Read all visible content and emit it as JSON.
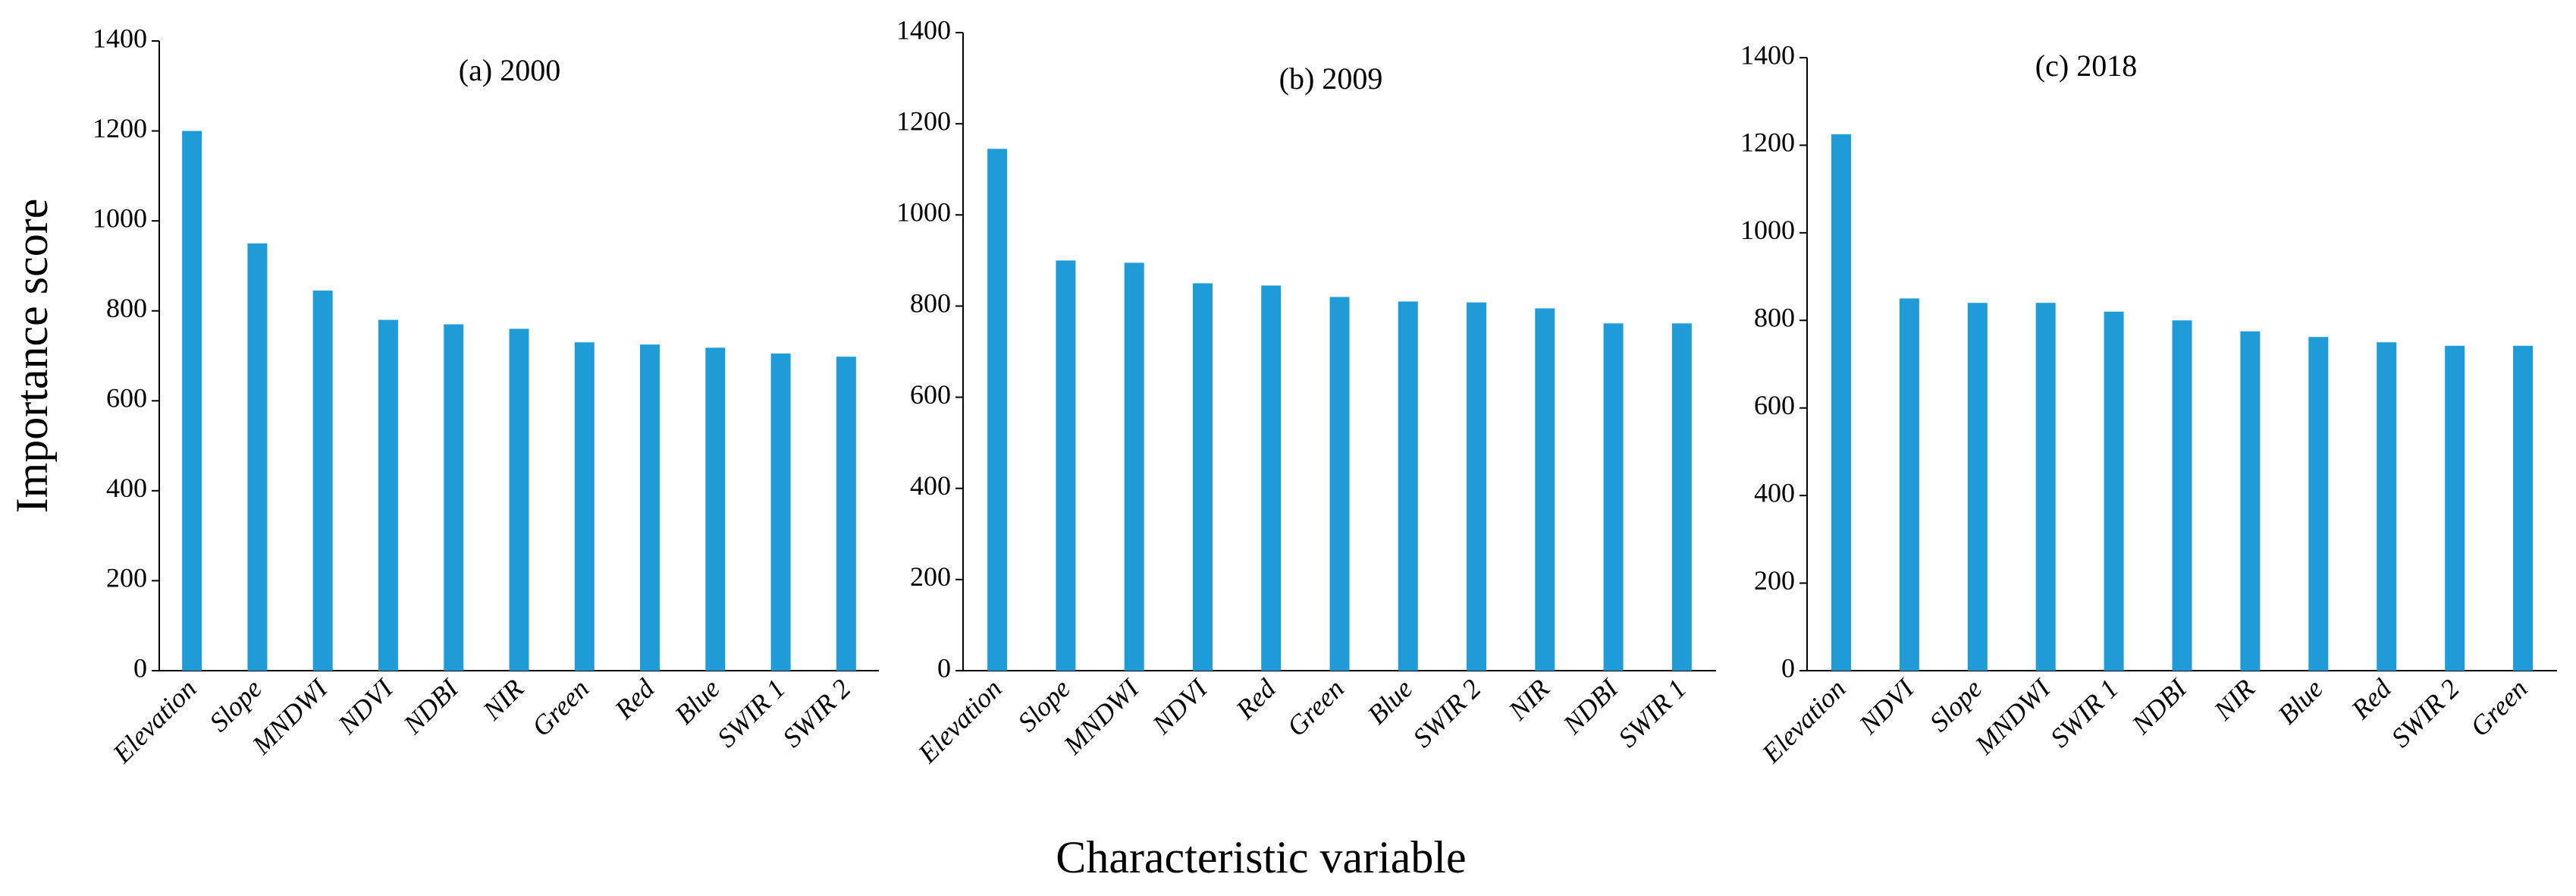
{
  "chart_data": [
    {
      "type": "bar",
      "title": "(a) 2000",
      "y_label": "Importance score",
      "color": "#1f9bd7",
      "categories": [
        "Elevation",
        "Slope",
        "MNDWI",
        "NDVI",
        "NDBI",
        "NIR",
        "Green",
        "Red",
        "Blue",
        "SWIR 1",
        "SWIR 2"
      ],
      "values": [
        1200,
        950,
        845,
        780,
        770,
        760,
        730,
        725,
        718,
        705,
        698
      ],
      "ylim": [
        0,
        1400
      ],
      "yticks": [
        0,
        200,
        400,
        600,
        800,
        1000,
        1200,
        1400
      ]
    },
    {
      "type": "bar",
      "title": "(b) 2009",
      "x_label": "Characteristic variable",
      "color": "#1f9bd7",
      "categories": [
        "Elevation",
        "Slope",
        "MNDWI",
        "NDVI",
        "Red",
        "Green",
        "Blue",
        "SWIR 2",
        "NIR",
        "NDBI",
        "SWIR 1"
      ],
      "values": [
        1145,
        900,
        895,
        850,
        845,
        820,
        810,
        808,
        795,
        762,
        762
      ],
      "ylim": [
        0,
        1400
      ],
      "yticks": [
        0,
        200,
        400,
        600,
        800,
        1000,
        1200,
        1400
      ]
    },
    {
      "type": "bar",
      "title": "(c) 2018",
      "color": "#1f9bd7",
      "categories": [
        "Elevation",
        "NDVI",
        "Slope",
        "MNDWI",
        "SWIR 1",
        "NDBI",
        "NIR",
        "Blue",
        "Red",
        "SWIR 2",
        "Green"
      ],
      "values": [
        1225,
        850,
        840,
        840,
        820,
        800,
        775,
        762,
        750,
        742,
        742
      ],
      "ylim": [
        0,
        1400
      ],
      "yticks": [
        0,
        200,
        400,
        600,
        800,
        1000,
        1200,
        1400
      ]
    }
  ]
}
